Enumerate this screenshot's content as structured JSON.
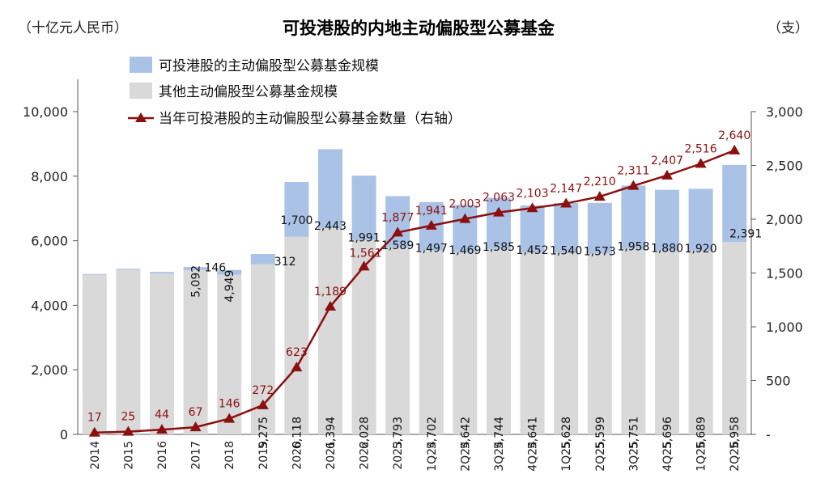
{
  "chart_data": {
    "type": "bar",
    "title": "可投港股的内地主动偏股型公募基金",
    "left_unit": "（十亿元人民币）",
    "right_unit": "（支）",
    "categories": [
      "2014",
      "2015",
      "2016",
      "2017",
      "2018",
      "2019",
      "2020",
      "2021",
      "2022",
      "2023",
      "1Q24",
      "2Q24",
      "3Q24",
      "4Q24",
      "1Q25",
      "2Q25",
      "3Q25",
      "4Q25",
      "1Q26",
      "2Q26"
    ],
    "series": [
      {
        "name": "可投港股的主动偏股型公募基金规模",
        "type": "stacked-bar",
        "color": "#a9c2e6",
        "values": [
          20,
          30,
          50,
          92,
          146,
          312,
          1700,
          2443,
          1991,
          1589,
          1497,
          1469,
          1585,
          1452,
          1540,
          1573,
          1958,
          1880,
          1920,
          2391
        ],
        "labels": [
          "",
          "",
          "",
          "",
          "146",
          "312",
          "1,700",
          "2,443",
          "1,991",
          "1,589",
          "1,497",
          "1,469",
          "1,585",
          "1,452",
          "1,540",
          "1,573",
          "1,958",
          "1,880",
          "1,920",
          "2,391"
        ]
      },
      {
        "name": "其他主动偏股型公募基金规模",
        "type": "stacked-bar",
        "color": "#d9d9d9",
        "values": [
          4950,
          5100,
          4980,
          5092,
          4949,
          5275,
          6118,
          6394,
          6028,
          5793,
          5702,
          5642,
          5744,
          5641,
          5628,
          5599,
          5751,
          5696,
          5689,
          5958
        ],
        "labels": [
          "",
          "",
          "",
          "5,092",
          "4,949",
          "5,275",
          "6,118",
          "6,394",
          "6,028",
          "5,793",
          "5,702",
          "5,642",
          "5,744",
          "5,641",
          "5,628",
          "5,599",
          "5,751",
          "5,696",
          "5,689",
          "5,958"
        ]
      },
      {
        "name": "当年可投港股的主动偏股型公募基金数量（右轴）",
        "type": "line",
        "axis": "right",
        "color": "#8b1010",
        "values": [
          17,
          25,
          44,
          67,
          146,
          272,
          623,
          1189,
          1561,
          1877,
          1941,
          2003,
          2063,
          2103,
          2147,
          2210,
          2311,
          2407,
          2516,
          2640
        ],
        "labels": [
          "17",
          "25",
          "44",
          "67",
          "146",
          "272",
          "623",
          "1,189",
          "1,561",
          "1,877",
          "1,941",
          "2,003",
          "2,063",
          "2,103",
          "2,147",
          "2,210",
          "2,311",
          "2,407",
          "2,516",
          "2,640"
        ]
      }
    ],
    "y_left": {
      "min": 0,
      "max": 10000,
      "ticks": [
        0,
        2000,
        4000,
        6000,
        8000,
        10000
      ],
      "tick_labels": [
        "0",
        "2,000",
        "4,000",
        "6,000",
        "8,000",
        "10,000"
      ]
    },
    "y_right": {
      "min": 0,
      "max": 3000,
      "ticks": [
        0,
        500,
        1000,
        1500,
        2000,
        2500,
        3000
      ],
      "tick_labels": [
        "-",
        "500",
        "1,000",
        "1,500",
        "2,000",
        "2,500",
        "3,000"
      ]
    },
    "legend_position": "top-left",
    "grid": false
  }
}
